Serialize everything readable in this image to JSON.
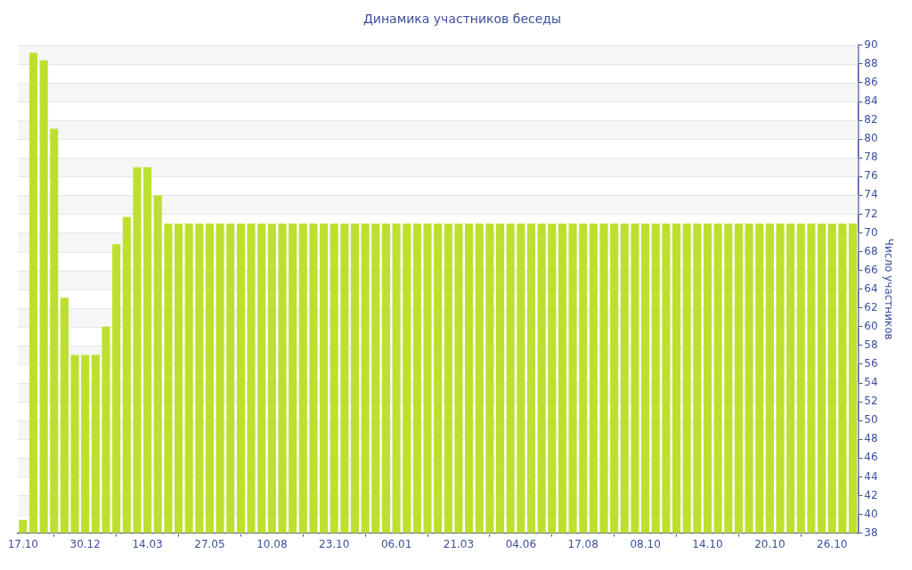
{
  "chart_data": {
    "type": "bar",
    "title": "Динамика участников беседы",
    "ylabel": "Число участников",
    "categories": [
      "17.10",
      null,
      null,
      null,
      null,
      null,
      "30.12",
      null,
      null,
      null,
      null,
      null,
      "14.03",
      null,
      null,
      null,
      null,
      null,
      "27.05",
      null,
      null,
      null,
      null,
      null,
      "10.08",
      null,
      null,
      null,
      null,
      null,
      "23.10",
      null,
      null,
      null,
      null,
      null,
      "06.01",
      null,
      null,
      null,
      null,
      null,
      "21.03",
      null,
      null,
      null,
      null,
      null,
      "04.06",
      null,
      null,
      null,
      null,
      null,
      "17.08",
      null,
      null,
      null,
      null,
      null,
      "08.10",
      null,
      null,
      null,
      null,
      null,
      "14.10",
      null,
      null,
      null,
      null,
      null,
      "20.10",
      null,
      null,
      null,
      null,
      null,
      "26.10",
      null,
      null
    ],
    "values": [
      39.4,
      89.2,
      88.4,
      81.1,
      63.1,
      57,
      57,
      57,
      60,
      68.8,
      71.7,
      77,
      77,
      74,
      71,
      71,
      71,
      71,
      71,
      71,
      71,
      71,
      71,
      71,
      71,
      71,
      71,
      71,
      71,
      71,
      71,
      71,
      71,
      71,
      71,
      71,
      71,
      71,
      71,
      71,
      71,
      71,
      71,
      71,
      71,
      71,
      71,
      71,
      71,
      71,
      71,
      71,
      71,
      71,
      71,
      71,
      71,
      71,
      71,
      71,
      71,
      71,
      71,
      71,
      71,
      71,
      71,
      71,
      71,
      71,
      71,
      71,
      71,
      71,
      71,
      71,
      71,
      71,
      71,
      71,
      71
    ],
    "color": "#bde02f",
    "ylim": [
      38,
      90
    ],
    "yticks": [
      38,
      40,
      42,
      44,
      46,
      48,
      50,
      52,
      54,
      56,
      58,
      60,
      62,
      64,
      66,
      68,
      70,
      72,
      74,
      76,
      78,
      80,
      82,
      84,
      86,
      88,
      90
    ],
    "grid": "y"
  }
}
